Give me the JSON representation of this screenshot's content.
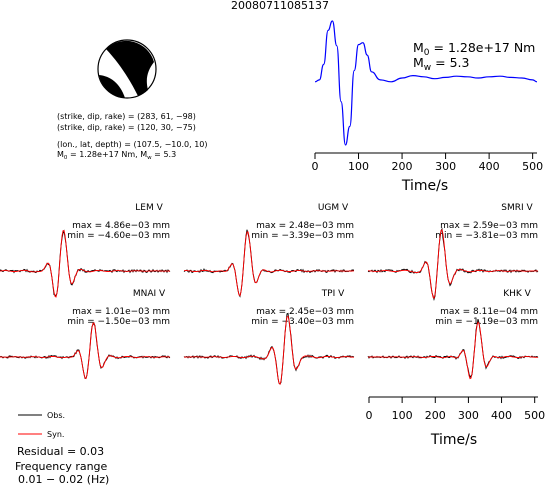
{
  "page_title": "20080711085137",
  "beachball": {
    "planes": [
      {
        "prefix": "(strike, dip, rake) = (",
        "values": "283, 61, −98",
        "suffix": ")"
      },
      {
        "prefix": "(strike, dip, rake) = (",
        "values": "120, 30, −75",
        "suffix": ")"
      }
    ],
    "location": "(lon., lat, depth) = (107.5, −10.0, 10)",
    "moment_line": {
      "m0": "1.28e+17 Nm,",
      "mw": "5.3"
    }
  },
  "stf": {
    "m0_label": "M",
    "m0_sub": "0",
    "m0_value": " = 1.28e+17 Nm",
    "mw_label": "M",
    "mw_sub": "w",
    "mw_value": " = 5.3",
    "xlabel": "Time/s",
    "xticks": [
      "0",
      "100",
      "200",
      "300",
      "400",
      "500"
    ]
  },
  "waveform_axis": {
    "xlabel": "Time/s",
    "xticks": [
      "0",
      "100",
      "200",
      "300",
      "400",
      "500"
    ]
  },
  "legend": {
    "obs": "Obs.",
    "syn": "Syn.",
    "obs_color": "#000000",
    "syn_color": "#ff0000",
    "stf_color": "#0000ff"
  },
  "residual": "Residual = 0.03",
  "freq_label": "Frequency range",
  "freq_range": "0.01 − 0.02 (Hz)",
  "stations": [
    {
      "name": "LEM V",
      "max": "max = 4.86e−03 mm",
      "min": "min = −4.60e−03 mm"
    },
    {
      "name": "UGM V",
      "max": "max = 2.48e−03 mm",
      "min": "min = −3.39e−03 mm"
    },
    {
      "name": "SMRI V",
      "max": "max = 2.59e−03 mm",
      "min": "min = −3.81e−03 mm"
    },
    {
      "name": "MNAI V",
      "max": "max = 1.01e−03 mm",
      "min": "min = −1.50e−03 mm"
    },
    {
      "name": "TPI V",
      "max": "max = 2.45e−03 mm",
      "min": "min = −3.40e−03 mm"
    },
    {
      "name": "KHK V",
      "max": "max = 8.11e−04 mm",
      "min": "min = −1.19e−03 mm"
    }
  ],
  "chart_data": [
    {
      "type": "line",
      "xlabel": "Time/s",
      "ylabel": "",
      "xlim": [
        0,
        510
      ],
      "series": [
        {
          "x": [
            0,
            10,
            20,
            30,
            40,
            50,
            60,
            70,
            80,
            90,
            100,
            110,
            120,
            130,
            150,
            175,
            200,
            225,
            250,
            275,
            300,
            325,
            350,
            375,
            400,
            425,
            450,
            475,
            500,
            510
          ],
          "y": [
            0.02,
            0.05,
            0.3,
            0.85,
            1.0,
            0.6,
            -0.3,
            -1.0,
            -0.7,
            0.2,
            0.62,
            0.65,
            0.45,
            0.18,
            0.05,
            0.02,
            0.08,
            0.12,
            0.1,
            0.07,
            0.09,
            0.11,
            0.1,
            0.08,
            0.1,
            0.11,
            0.09,
            0.08,
            0.05,
            0.02
          ]
        }
      ]
    },
    {
      "type": "line",
      "xlabel": "Time/s",
      "xlim": [
        0,
        510
      ],
      "ylim": [
        -1,
        1
      ],
      "panels": [
        {
          "name": "LEM V",
          "pulse_center": 180,
          "amp_scale": 1.0
        },
        {
          "name": "UGM V",
          "pulse_center": 180,
          "amp_scale": 1.0
        },
        {
          "name": "SMRI V",
          "pulse_center": 210,
          "amp_scale": 1.0
        },
        {
          "name": "MNAI V",
          "pulse_center": 270,
          "amp_scale": 0.85
        },
        {
          "name": "TPI V",
          "pulse_center": 300,
          "amp_scale": 1.0
        },
        {
          "name": "KHK V",
          "pulse_center": 320,
          "amp_scale": 0.9
        }
      ]
    }
  ]
}
